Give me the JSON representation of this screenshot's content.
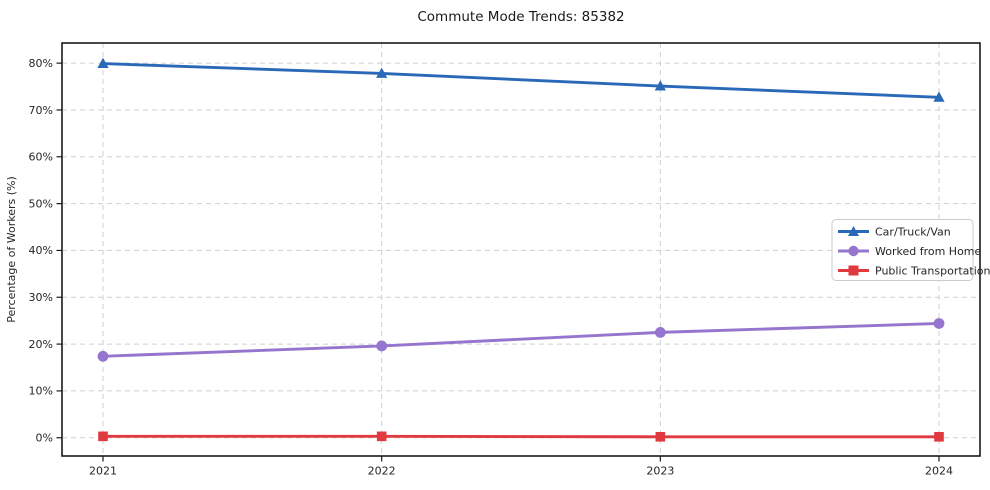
{
  "chart_data": {
    "type": "line",
    "title": "Commute Mode Trends: 85382",
    "xlabel": "",
    "ylabel": "Percentage of Workers (%)",
    "x_tick_labels": [
      "2021",
      "2022",
      "2023",
      "2024"
    ],
    "y_ticks": [
      0,
      10,
      20,
      30,
      40,
      50,
      60,
      70,
      80
    ],
    "y_tick_suffix": "%",
    "ylim": [
      -3.9,
      84.3
    ],
    "grid": true,
    "grid_style": "dashed",
    "legend_position": "center right",
    "series": [
      {
        "name": "Car/Truck/Van",
        "color": "#2a68b8",
        "marker": "triangle",
        "values": [
          79.9,
          77.8,
          75.1,
          72.7
        ]
      },
      {
        "name": "Worked from Home",
        "color": "#9575cd",
        "marker": "circle",
        "values": [
          17.4,
          19.6,
          22.5,
          24.4
        ]
      },
      {
        "name": "Public Transportation",
        "color": "#e0393f",
        "marker": "square",
        "values": [
          0.3,
          0.3,
          0.2,
          0.2
        ]
      }
    ]
  }
}
